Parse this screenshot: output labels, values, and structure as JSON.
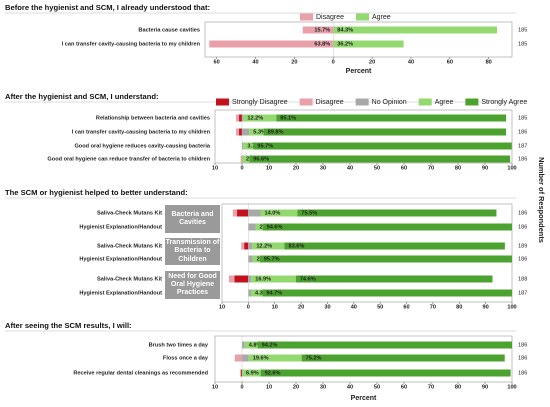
{
  "right_label": "Number of Respondents",
  "chart_data": [
    {
      "type": "diverging_bar",
      "title": "Before the hygienist and SCM, I already understood that:",
      "xlabel": "Percent",
      "categories": [
        "Bacteria cause cavities",
        "I can transfer cavity-causing bacteria to my children"
      ],
      "n": [
        185,
        185
      ],
      "series": [
        {
          "name": "Disagree",
          "color": "#e8a1aa",
          "direction": "left",
          "values": [
            15.7,
            63.8
          ],
          "value_labels": [
            "15.7%",
            "63.8%"
          ]
        },
        {
          "name": "Agree",
          "color": "#93d970",
          "direction": "right",
          "values": [
            84.3,
            36.2
          ],
          "value_labels": [
            "84.3%",
            "36.2%"
          ]
        }
      ],
      "xlim": [
        -66,
        92
      ],
      "xticks": [
        {
          "value": -60,
          "label": "60"
        },
        {
          "value": -40,
          "label": "40"
        },
        {
          "value": -20,
          "label": "20"
        },
        0,
        20,
        40,
        60,
        80
      ],
      "legend": "top"
    },
    {
      "type": "diverging_bar",
      "title": "After the hygienist and SCM, I understand:",
      "categories": [
        "Relationship between bacteria and cavities",
        "I can transfer cavity-causing bacteria to my children",
        "Good oral hygiene reduces cavity-causing bacteria",
        "Good oral hygiene can reduce transfer of bacteria to children"
      ],
      "n": [
        185,
        186,
        187,
        186
      ],
      "series": [
        {
          "name": "Strongly Disagree",
          "color": "#c3121e",
          "direction": "left",
          "values": [
            1.1,
            1.1,
            0,
            0
          ],
          "value_labels": [
            null,
            null,
            null,
            null
          ]
        },
        {
          "name": "Disagree",
          "color": "#e8a1aa",
          "direction": "left",
          "values": [
            1.1,
            1.1,
            0,
            0.5
          ],
          "value_labels": [
            null,
            null,
            null,
            null
          ]
        },
        {
          "name": "No Opinion",
          "color": "#a8a8a8",
          "direction": "right",
          "values": [
            0.5,
            2.7,
            0.5,
            0
          ],
          "value_labels": [
            null,
            null,
            null,
            null
          ]
        },
        {
          "name": "Agree",
          "color": "#93d970",
          "direction": "right",
          "values": [
            12.2,
            5.3,
            3.7,
            2.7
          ],
          "value_labels": [
            "12.2%",
            "5.3%",
            "3.7%",
            "2.7%"
          ]
        },
        {
          "name": "Strongly Agree",
          "color": "#4ca22e",
          "direction": "right",
          "values": [
            85.1,
            89.8,
            95.7,
            96.6
          ],
          "value_labels": [
            "85.1%",
            "89.8%",
            "95.7%",
            "96.6%"
          ]
        }
      ],
      "xlim": [
        -10,
        100
      ],
      "xticks": [
        {
          "value": -10,
          "label": "10"
        },
        0,
        10,
        20,
        30,
        40,
        50,
        60,
        70,
        80,
        90,
        100
      ],
      "legend": "top"
    },
    {
      "type": "diverging_bar",
      "title": "The SCM or hygienist helped to better understand:",
      "groups": [
        "Bacteria and Cavities",
        "Transmission of Bacteria to Children",
        "Need for Good Oral Hygiene Practices"
      ],
      "categories": [
        "Saliva-Check Mutans Kit",
        "Hygienist Explanation/Handout",
        "Saliva-Check Mutans Kit",
        "Hygienist Explanation/Handout",
        "Saliva-Check Mutans Kit",
        "Hygienist Explanation/Handout"
      ],
      "n": [
        186,
        186,
        189,
        186,
        188,
        187
      ],
      "series": [
        {
          "color": "#c3121e",
          "direction": "left",
          "values": [
            4.3,
            0,
            1.6,
            0,
            5.3,
            0
          ],
          "value_labels": [
            null,
            null,
            null,
            null,
            null,
            null
          ]
        },
        {
          "color": "#e8a1aa",
          "direction": "left",
          "values": [
            1.6,
            0,
            1.1,
            0,
            2.1,
            0
          ],
          "value_labels": [
            null,
            null,
            null,
            null,
            null,
            null
          ]
        },
        {
          "color": "#a8a8a8",
          "direction": "right",
          "values": [
            4.6,
            2.7,
            1.5,
            1.6,
            1.1,
            1.0
          ],
          "value_labels": [
            null,
            null,
            null,
            null,
            null,
            null
          ]
        },
        {
          "color": "#93d970",
          "direction": "right",
          "values": [
            14.0,
            2.7,
            12.2,
            2.7,
            16.9,
            4.3
          ],
          "value_labels": [
            "14.0%",
            "2.7%",
            "12.2%",
            "2.7%",
            "16.9%",
            "4.3%"
          ]
        },
        {
          "color": "#4ca22e",
          "direction": "right",
          "values": [
            75.5,
            94.6,
            83.6,
            95.7,
            74.6,
            94.7
          ],
          "value_labels": [
            "75.5%",
            "94.6%",
            "83.6%",
            "95.7%",
            "74.6%",
            "94.7%"
          ]
        }
      ],
      "xlim": [
        -10,
        100
      ],
      "xticks": [
        {
          "value": -10,
          "label": "10"
        },
        0,
        10,
        20,
        30,
        40,
        50,
        60,
        70,
        80,
        90,
        100
      ]
    },
    {
      "type": "diverging_bar",
      "title": "After seeing the SCM results, I will:",
      "xlabel": "Percent",
      "categories": [
        "Brush two times a day",
        "Floss once a day",
        "Receive regular dental cleanings as recommended"
      ],
      "n": [
        186,
        186,
        186
      ],
      "series": [
        {
          "color": "#c3121e",
          "direction": "left",
          "values": [
            0,
            0,
            0.5
          ],
          "value_labels": [
            null,
            null,
            null
          ]
        },
        {
          "color": "#e8a1aa",
          "direction": "left",
          "values": [
            0,
            2.7,
            0
          ],
          "value_labels": [
            null,
            null,
            null
          ]
        },
        {
          "color": "#a8a8a8",
          "direction": "right",
          "values": [
            1.0,
            2.5,
            0
          ],
          "value_labels": [
            null,
            null,
            null
          ]
        },
        {
          "color": "#93d970",
          "direction": "right",
          "values": [
            4.8,
            19.6,
            6.9
          ],
          "value_labels": [
            "4.8%",
            "19.6%",
            "6.9%"
          ]
        },
        {
          "color": "#4ca22e",
          "direction": "right",
          "values": [
            94.2,
            75.2,
            92.6
          ],
          "value_labels": [
            "94.2%",
            "75.2%",
            "92.6%"
          ]
        }
      ],
      "xlim": [
        -10,
        100
      ],
      "xticks": [
        {
          "value": -10,
          "label": "10"
        },
        0,
        10,
        20,
        30,
        40,
        50,
        60,
        70,
        80,
        90,
        100
      ]
    }
  ]
}
